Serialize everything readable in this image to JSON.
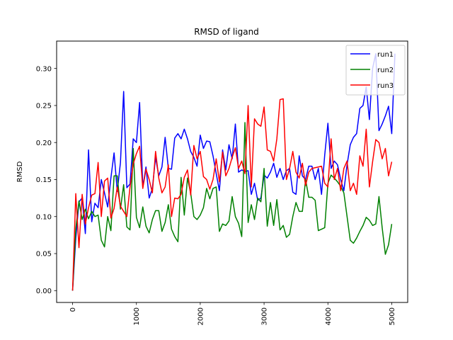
{
  "chart_data": {
    "type": "line",
    "title": "RMSD of ligand",
    "xlabel": "",
    "ylabel": "RMSD",
    "xlim": [
      -250,
      5250
    ],
    "ylim": [
      -0.016,
      0.337
    ],
    "x_ticks": [
      0,
      1000,
      2000,
      3000,
      4000,
      5000
    ],
    "x_tick_labels": [
      "0",
      "1000",
      "2000",
      "3000",
      "4000",
      "5000"
    ],
    "y_ticks": [
      0.0,
      0.05,
      0.1,
      0.15,
      0.2,
      0.25,
      0.3
    ],
    "y_tick_labels": [
      "0.00",
      "0.05",
      "0.10",
      "0.15",
      "0.20",
      "0.25",
      "0.30"
    ],
    "grid": false,
    "legend_position": "top-right",
    "series": [
      {
        "name": "run1",
        "color": "#0000ff",
        "points": [
          [
            0,
            0.0
          ],
          [
            50,
            0.07
          ],
          [
            100,
            0.12
          ],
          [
            150,
            0.125
          ],
          [
            200,
            0.077
          ],
          [
            250,
            0.19
          ],
          [
            300,
            0.093
          ],
          [
            350,
            0.118
          ],
          [
            400,
            0.112
          ],
          [
            450,
            0.15
          ],
          [
            500,
            0.132
          ],
          [
            550,
            0.113
          ],
          [
            600,
            0.152
          ],
          [
            650,
            0.186
          ],
          [
            700,
            0.134
          ],
          [
            750,
            0.173
          ],
          [
            800,
            0.269
          ],
          [
            850,
            0.139
          ],
          [
            900,
            0.144
          ],
          [
            950,
            0.205
          ],
          [
            1000,
            0.2
          ],
          [
            1050,
            0.254
          ],
          [
            1100,
            0.14
          ],
          [
            1150,
            0.167
          ],
          [
            1200,
            0.125
          ],
          [
            1250,
            0.138
          ],
          [
            1300,
            0.18
          ],
          [
            1350,
            0.155
          ],
          [
            1400,
            0.167
          ],
          [
            1450,
            0.207
          ],
          [
            1500,
            0.165
          ],
          [
            1550,
            0.164
          ],
          [
            1600,
            0.206
          ],
          [
            1650,
            0.212
          ],
          [
            1700,
            0.205
          ],
          [
            1750,
            0.218
          ],
          [
            1800,
            0.205
          ],
          [
            1850,
            0.188
          ],
          [
            1900,
            0.18
          ],
          [
            1950,
            0.168
          ],
          [
            2000,
            0.21
          ],
          [
            2050,
            0.192
          ],
          [
            2100,
            0.202
          ],
          [
            2150,
            0.201
          ],
          [
            2200,
            0.182
          ],
          [
            2250,
            0.158
          ],
          [
            2300,
            0.135
          ],
          [
            2350,
            0.19
          ],
          [
            2400,
            0.163
          ],
          [
            2450,
            0.197
          ],
          [
            2500,
            0.178
          ],
          [
            2550,
            0.225
          ],
          [
            2600,
            0.16
          ],
          [
            2650,
            0.163
          ],
          [
            2700,
            0.161
          ],
          [
            2750,
            0.162
          ],
          [
            2800,
            0.13
          ],
          [
            2850,
            0.145
          ],
          [
            2900,
            0.122
          ],
          [
            2950,
            0.125
          ],
          [
            3000,
            0.156
          ],
          [
            3050,
            0.152
          ],
          [
            3100,
            0.16
          ],
          [
            3150,
            0.172
          ],
          [
            3200,
            0.153
          ],
          [
            3250,
            0.165
          ],
          [
            3300,
            0.15
          ],
          [
            3350,
            0.162
          ],
          [
            3400,
            0.165
          ],
          [
            3450,
            0.133
          ],
          [
            3500,
            0.13
          ],
          [
            3550,
            0.182
          ],
          [
            3600,
            0.155
          ],
          [
            3650,
            0.15
          ],
          [
            3700,
            0.168
          ],
          [
            3750,
            0.168
          ],
          [
            3800,
            0.15
          ],
          [
            3850,
            0.165
          ],
          [
            3900,
            0.13
          ],
          [
            3950,
            0.183
          ],
          [
            4000,
            0.226
          ],
          [
            4050,
            0.165
          ],
          [
            4100,
            0.175
          ],
          [
            4150,
            0.17
          ],
          [
            4200,
            0.15
          ],
          [
            4250,
            0.135
          ],
          [
            4300,
            0.17
          ],
          [
            4350,
            0.197
          ],
          [
            4400,
            0.207
          ],
          [
            4450,
            0.212
          ],
          [
            4500,
            0.246
          ],
          [
            4550,
            0.25
          ],
          [
            4600,
            0.275
          ],
          [
            4650,
            0.231
          ],
          [
            4700,
            0.3
          ],
          [
            4750,
            0.32
          ],
          [
            4800,
            0.216
          ],
          [
            4850,
            0.225
          ],
          [
            4900,
            0.236
          ],
          [
            4950,
            0.249
          ],
          [
            5000,
            0.212
          ],
          [
            5050,
            0.32
          ]
        ]
      },
      {
        "name": "run2",
        "color": "#008000",
        "points": [
          [
            0,
            0.0
          ],
          [
            50,
            0.083
          ],
          [
            100,
            0.121
          ],
          [
            150,
            0.096
          ],
          [
            200,
            0.11
          ],
          [
            250,
            0.097
          ],
          [
            300,
            0.107
          ],
          [
            350,
            0.1
          ],
          [
            400,
            0.102
          ],
          [
            450,
            0.068
          ],
          [
            500,
            0.059
          ],
          [
            550,
            0.1
          ],
          [
            600,
            0.081
          ],
          [
            650,
            0.155
          ],
          [
            700,
            0.155
          ],
          [
            750,
            0.11
          ],
          [
            800,
            0.143
          ],
          [
            850,
            0.086
          ],
          [
            900,
            0.082
          ],
          [
            950,
            0.192
          ],
          [
            1000,
            0.099
          ],
          [
            1050,
            0.085
          ],
          [
            1100,
            0.113
          ],
          [
            1150,
            0.087
          ],
          [
            1200,
            0.078
          ],
          [
            1250,
            0.096
          ],
          [
            1300,
            0.108
          ],
          [
            1350,
            0.108
          ],
          [
            1400,
            0.08
          ],
          [
            1450,
            0.092
          ],
          [
            1500,
            0.116
          ],
          [
            1550,
            0.083
          ],
          [
            1600,
            0.073
          ],
          [
            1650,
            0.066
          ],
          [
            1700,
            0.153
          ],
          [
            1750,
            0.102
          ],
          [
            1800,
            0.152
          ],
          [
            1850,
            0.132
          ],
          [
            1900,
            0.1
          ],
          [
            1950,
            0.096
          ],
          [
            2000,
            0.102
          ],
          [
            2050,
            0.112
          ],
          [
            2100,
            0.138
          ],
          [
            2150,
            0.124
          ],
          [
            2200,
            0.138
          ],
          [
            2250,
            0.14
          ],
          [
            2300,
            0.08
          ],
          [
            2350,
            0.09
          ],
          [
            2400,
            0.088
          ],
          [
            2450,
            0.094
          ],
          [
            2500,
            0.127
          ],
          [
            2550,
            0.1
          ],
          [
            2600,
            0.091
          ],
          [
            2650,
            0.073
          ],
          [
            2700,
            0.227
          ],
          [
            2750,
            0.092
          ],
          [
            2800,
            0.116
          ],
          [
            2850,
            0.096
          ],
          [
            2900,
            0.125
          ],
          [
            2950,
            0.12
          ],
          [
            3000,
            0.165
          ],
          [
            3050,
            0.087
          ],
          [
            3100,
            0.119
          ],
          [
            3150,
            0.088
          ],
          [
            3200,
            0.123
          ],
          [
            3250,
            0.082
          ],
          [
            3300,
            0.088
          ],
          [
            3350,
            0.072
          ],
          [
            3400,
            0.076
          ],
          [
            3450,
            0.1
          ],
          [
            3500,
            0.119
          ],
          [
            3550,
            0.107
          ],
          [
            3600,
            0.107
          ],
          [
            3650,
            0.15
          ],
          [
            3700,
            0.126
          ],
          [
            3750,
            0.126
          ],
          [
            3800,
            0.122
          ],
          [
            3850,
            0.081
          ],
          [
            3900,
            0.083
          ],
          [
            3950,
            0.085
          ],
          [
            4000,
            0.145
          ],
          [
            4050,
            0.156
          ],
          [
            4100,
            0.152
          ],
          [
            4150,
            0.147
          ],
          [
            4200,
            0.141
          ],
          [
            4250,
            0.132
          ],
          [
            4300,
            0.1
          ],
          [
            4350,
            0.068
          ],
          [
            4400,
            0.064
          ],
          [
            4450,
            0.071
          ],
          [
            4500,
            0.08
          ],
          [
            4550,
            0.088
          ],
          [
            4600,
            0.099
          ],
          [
            4650,
            0.095
          ],
          [
            4700,
            0.088
          ],
          [
            4750,
            0.09
          ],
          [
            4800,
            0.127
          ],
          [
            4850,
            0.085
          ],
          [
            4900,
            0.049
          ],
          [
            4950,
            0.062
          ],
          [
            5000,
            0.09
          ]
        ]
      },
      {
        "name": "run3",
        "color": "#ff0000",
        "points": [
          [
            0,
            0.0
          ],
          [
            50,
            0.131
          ],
          [
            100,
            0.058
          ],
          [
            150,
            0.13
          ],
          [
            200,
            0.09
          ],
          [
            250,
            0.112
          ],
          [
            300,
            0.129
          ],
          [
            350,
            0.131
          ],
          [
            400,
            0.173
          ],
          [
            450,
            0.1
          ],
          [
            500,
            0.148
          ],
          [
            550,
            0.152
          ],
          [
            600,
            0.098
          ],
          [
            650,
            0.111
          ],
          [
            700,
            0.14
          ],
          [
            750,
            0.114
          ],
          [
            800,
            0.107
          ],
          [
            850,
            0.1
          ],
          [
            900,
            0.14
          ],
          [
            950,
            0.171
          ],
          [
            1000,
            0.185
          ],
          [
            1050,
            0.195
          ],
          [
            1100,
            0.138
          ],
          [
            1150,
            0.164
          ],
          [
            1200,
            0.15
          ],
          [
            1250,
            0.132
          ],
          [
            1300,
            0.188
          ],
          [
            1350,
            0.152
          ],
          [
            1400,
            0.132
          ],
          [
            1450,
            0.14
          ],
          [
            1500,
            0.17
          ],
          [
            1550,
            0.1
          ],
          [
            1600,
            0.125
          ],
          [
            1650,
            0.124
          ],
          [
            1700,
            0.13
          ],
          [
            1750,
            0.153
          ],
          [
            1800,
            0.163
          ],
          [
            1850,
            0.129
          ],
          [
            1900,
            0.196
          ],
          [
            1950,
            0.178
          ],
          [
            2000,
            0.188
          ],
          [
            2050,
            0.154
          ],
          [
            2100,
            0.15
          ],
          [
            2150,
            0.137
          ],
          [
            2200,
            0.15
          ],
          [
            2250,
            0.178
          ],
          [
            2300,
            0.147
          ],
          [
            2350,
            0.187
          ],
          [
            2400,
            0.155
          ],
          [
            2450,
            0.165
          ],
          [
            2500,
            0.18
          ],
          [
            2550,
            0.193
          ],
          [
            2600,
            0.165
          ],
          [
            2650,
            0.175
          ],
          [
            2700,
            0.158
          ],
          [
            2750,
            0.25
          ],
          [
            2800,
            0.14
          ],
          [
            2850,
            0.232
          ],
          [
            2900,
            0.225
          ],
          [
            2950,
            0.222
          ],
          [
            3000,
            0.248
          ],
          [
            3050,
            0.19
          ],
          [
            3100,
            0.188
          ],
          [
            3150,
            0.175
          ],
          [
            3200,
            0.205
          ],
          [
            3250,
            0.258
          ],
          [
            3300,
            0.259
          ],
          [
            3350,
            0.15
          ],
          [
            3400,
            0.165
          ],
          [
            3450,
            0.188
          ],
          [
            3500,
            0.16
          ],
          [
            3550,
            0.152
          ],
          [
            3600,
            0.172
          ],
          [
            3650,
            0.142
          ],
          [
            3700,
            0.16
          ],
          [
            3750,
            0.165
          ],
          [
            3800,
            0.166
          ],
          [
            3850,
            0.167
          ],
          [
            3900,
            0.168
          ],
          [
            3950,
            0.145
          ],
          [
            4000,
            0.14
          ],
          [
            4050,
            0.205
          ],
          [
            4100,
            0.15
          ],
          [
            4150,
            0.165
          ],
          [
            4200,
            0.135
          ],
          [
            4250,
            0.165
          ],
          [
            4300,
            0.175
          ],
          [
            4350,
            0.135
          ],
          [
            4400,
            0.145
          ],
          [
            4450,
            0.13
          ],
          [
            4500,
            0.182
          ],
          [
            4550,
            0.168
          ],
          [
            4600,
            0.218
          ],
          [
            4650,
            0.14
          ],
          [
            4700,
            0.174
          ],
          [
            4750,
            0.204
          ],
          [
            4800,
            0.2
          ],
          [
            4850,
            0.178
          ],
          [
            4900,
            0.192
          ],
          [
            4950,
            0.155
          ],
          [
            5000,
            0.174
          ]
        ]
      }
    ]
  }
}
